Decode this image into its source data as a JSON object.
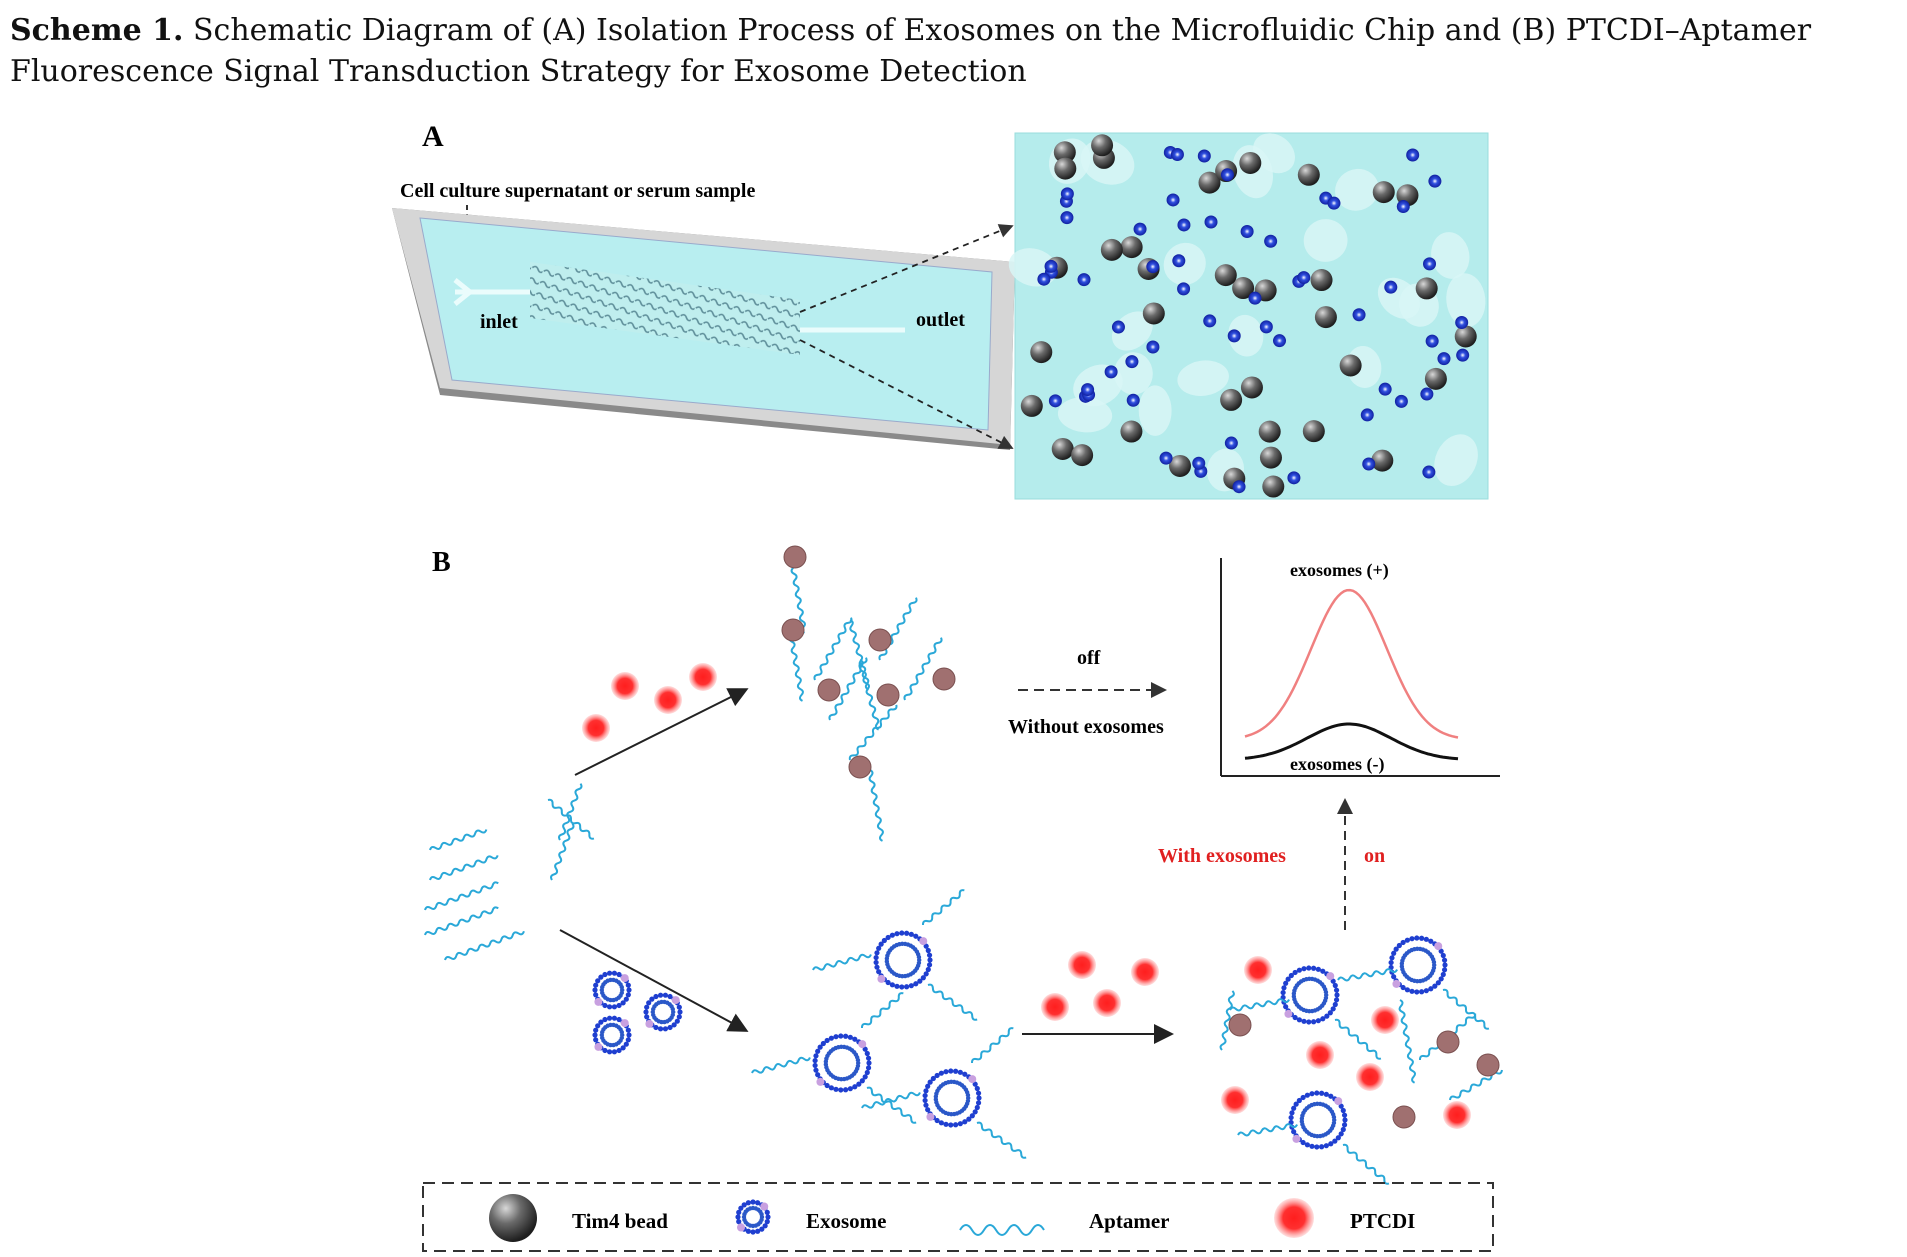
{
  "caption": {
    "label": "Scheme 1.",
    "text": "Schematic Diagram of (A) Isolation Process of Exosomes on the Microfluidic Chip and (B) PTCDI–Aptamer Fluorescence Signal Transduction Strategy for Exosome Detection"
  },
  "panel_a": {
    "label": "A",
    "sample_label": "Cell culture supernatant or serum sample",
    "inlet_label": "inlet",
    "outlet_label": "outlet"
  },
  "panel_b": {
    "label": "B",
    "off_label": "off",
    "without_label": "Without exosomes",
    "with_label": "With exosomes",
    "on_label": "on",
    "curve_pos_label": "exosomes (+)",
    "curve_neg_label": "exosomes (-)",
    "curve_pos_color": "#f08080",
    "curve_neg_color": "#111111",
    "with_color": "#e02020"
  },
  "legend": {
    "items": [
      {
        "label": "Tim4 bead",
        "icon": "gray-sphere"
      },
      {
        "label": "Exosome",
        "icon": "exosome-vesicle"
      },
      {
        "label": "Aptamer",
        "icon": "wavy-strand"
      },
      {
        "label": "PTCDI",
        "icon": "red-glow-dot"
      }
    ]
  },
  "colors": {
    "channel_fluid": "#b5ecec",
    "bead_gray": "#555555",
    "exosome_blue": "#1f3fd0",
    "aptamer_cyan": "#2aa8d8",
    "ptcdi_red": "#ff2a2a",
    "quenched_dot": "#a07070"
  }
}
